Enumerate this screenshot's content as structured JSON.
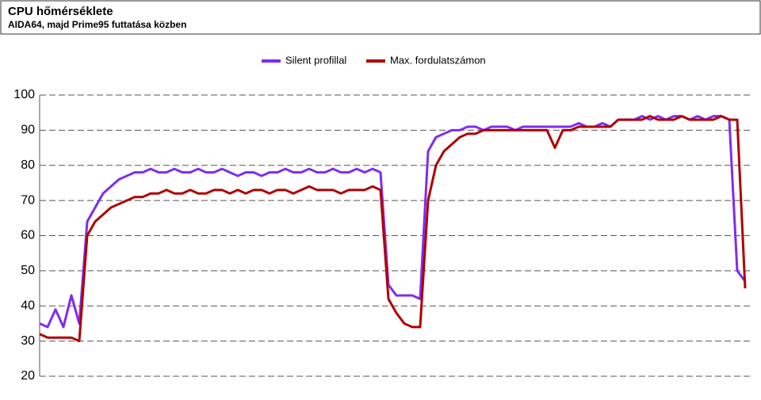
{
  "chart_data": {
    "type": "line",
    "title": "CPU hőmérséklete",
    "subtitle": "AIDA64, majd Prime95 futtatása közben",
    "categories": [
      null,
      null,
      null,
      null,
      null,
      null,
      null,
      null,
      null,
      null,
      null,
      null,
      null,
      null,
      null,
      null,
      null,
      null,
      null,
      null,
      null,
      null,
      null,
      null,
      null,
      null,
      null,
      null,
      null,
      null,
      null,
      null,
      null,
      null,
      null,
      null,
      null,
      null,
      null,
      null,
      null,
      null,
      null,
      null,
      null,
      null,
      null,
      null,
      null,
      null,
      null,
      null,
      null,
      null,
      null,
      null,
      null,
      null,
      null,
      null,
      null,
      null,
      null,
      null,
      null,
      null,
      null,
      null,
      null,
      null,
      null,
      null,
      null,
      null,
      null,
      null,
      null,
      null,
      null,
      null,
      null,
      null,
      null,
      null,
      null,
      null,
      null,
      null,
      null,
      null
    ],
    "series": [
      {
        "name": "Silent profillal",
        "color": "#7f2cf0",
        "values": [
          35,
          34,
          39,
          34,
          43,
          35,
          64,
          68,
          72,
          74,
          76,
          77,
          78,
          78,
          79,
          78,
          78,
          79,
          78,
          78,
          79,
          78,
          78,
          79,
          78,
          77,
          78,
          78,
          77,
          78,
          78,
          79,
          78,
          78,
          79,
          78,
          78,
          79,
          78,
          78,
          79,
          78,
          79,
          78,
          46,
          43,
          43,
          43,
          42,
          84,
          88,
          89,
          90,
          90,
          91,
          91,
          90,
          91,
          91,
          91,
          90,
          91,
          91,
          91,
          91,
          91,
          91,
          91,
          92,
          91,
          91,
          92,
          91,
          93,
          93,
          93,
          94,
          93,
          94,
          93,
          94,
          94,
          93,
          94,
          93,
          94,
          94,
          93,
          50,
          47
        ]
      },
      {
        "name": "Max. fordulatszámon",
        "color": "#b00000",
        "values": [
          32,
          31,
          31,
          31,
          31,
          30,
          60,
          64,
          66,
          68,
          69,
          70,
          71,
          71,
          72,
          72,
          73,
          72,
          72,
          73,
          72,
          72,
          73,
          73,
          72,
          73,
          72,
          73,
          73,
          72,
          73,
          73,
          72,
          73,
          74,
          73,
          73,
          73,
          72,
          73,
          73,
          73,
          74,
          73,
          42,
          38,
          35,
          34,
          34,
          70,
          80,
          84,
          86,
          88,
          89,
          89,
          90,
          90,
          90,
          90,
          90,
          90,
          90,
          90,
          90,
          85,
          90,
          90,
          91,
          91,
          91,
          91,
          91,
          93,
          93,
          93,
          93,
          94,
          93,
          93,
          93,
          94,
          93,
          93,
          93,
          93,
          94,
          93,
          93,
          45
        ]
      }
    ],
    "ylim": [
      20,
      100
    ],
    "yticks": [
      20,
      30,
      40,
      50,
      60,
      70,
      80,
      90,
      100
    ],
    "grid": true
  }
}
